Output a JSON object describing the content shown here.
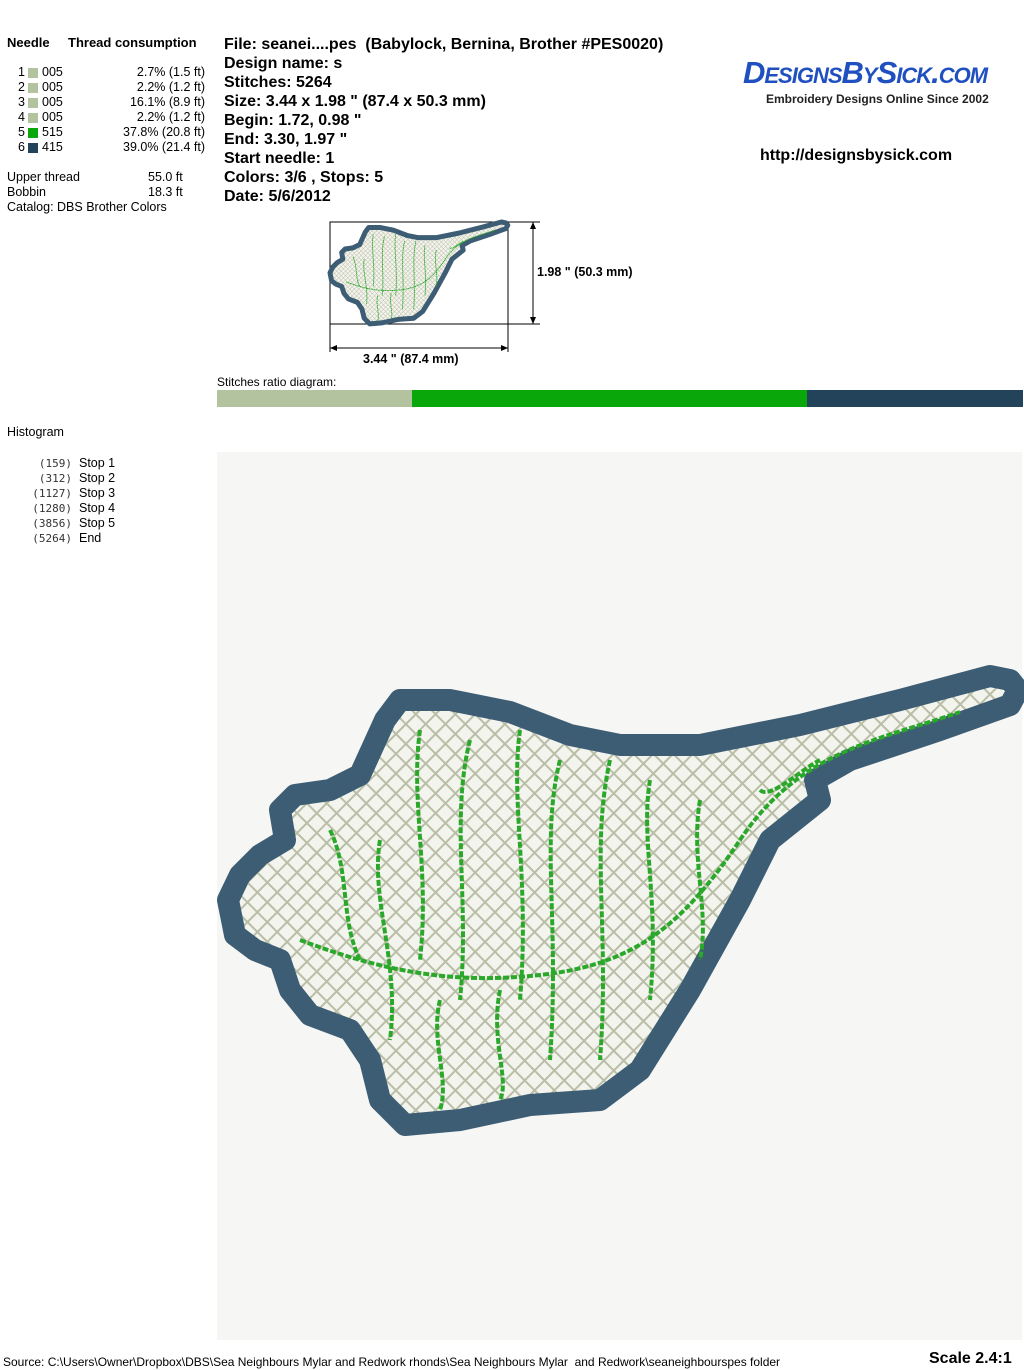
{
  "left": {
    "header": {
      "needle": "Needle",
      "consumption": "Thread consumption"
    },
    "threads": [
      {
        "needle": "1",
        "color": "#b3c3a0",
        "code": "005",
        "amount": "2.7% (1.5 ft)"
      },
      {
        "needle": "2",
        "color": "#b3c3a0",
        "code": "005",
        "amount": "2.2% (1.2 ft)"
      },
      {
        "needle": "3",
        "color": "#b3c3a0",
        "code": "005",
        "amount": "16.1% (8.9 ft)"
      },
      {
        "needle": "4",
        "color": "#b3c3a0",
        "code": "005",
        "amount": "2.2% (1.2 ft)"
      },
      {
        "needle": "5",
        "color": "#0aa70a",
        "code": "515",
        "amount": "37.8% (20.8 ft)"
      },
      {
        "needle": "6",
        "color": "#23435a",
        "code": "415",
        "amount": "39.0% (21.4 ft)"
      }
    ],
    "upper_thread": {
      "label": "Upper thread",
      "value": "55.0 ft"
    },
    "bobbin": {
      "label": "Bobbin",
      "value": "18.3 ft"
    },
    "catalog": "Catalog: DBS Brother Colors",
    "histogram": {
      "title": "Histogram",
      "stops": [
        {
          "count": "(159)",
          "label": "Stop 1"
        },
        {
          "count": "(312)",
          "label": "Stop 2"
        },
        {
          "count": "(1127)",
          "label": "Stop 3"
        },
        {
          "count": "(1280)",
          "label": "Stop 4"
        },
        {
          "count": "(3856)",
          "label": "Stop 5"
        },
        {
          "count": "(5264)",
          "label": "End"
        }
      ]
    }
  },
  "info": [
    "File: seanei....pes  (Babylock, Bernina, Brother #PES0020)",
    "Design name: s",
    "Stitches: 5264",
    "Size: 3.44 x 1.98 \" (87.4 x 50.3 mm)",
    "Begin: 1.72, 0.98 \"",
    "End: 3.30, 1.97 \"",
    "Start needle: 1",
    "Colors: 3/6 , Stops: 5",
    "Date: 5/6/2012"
  ],
  "logo": {
    "name": "DesignsBySick.com",
    "tagline": "Embroidery Designs Online Since 2002",
    "url": "http://designsbysick.com"
  },
  "thumbnail": {
    "height_label": "1.98 \" (50.3 mm)",
    "width_label": "3.44 \" (87.4 mm)"
  },
  "ratio_label": "Stitches ratio diagram:",
  "footer": {
    "source": "Source: C:\\Users\\Owner\\Dropbox\\DBS\\Sea Neighbours Mylar and Redwork rhonds\\Sea Neighbours Mylar  and Redwork\\seaneighbourspes folder",
    "scale": "Scale 2.4:1"
  }
}
